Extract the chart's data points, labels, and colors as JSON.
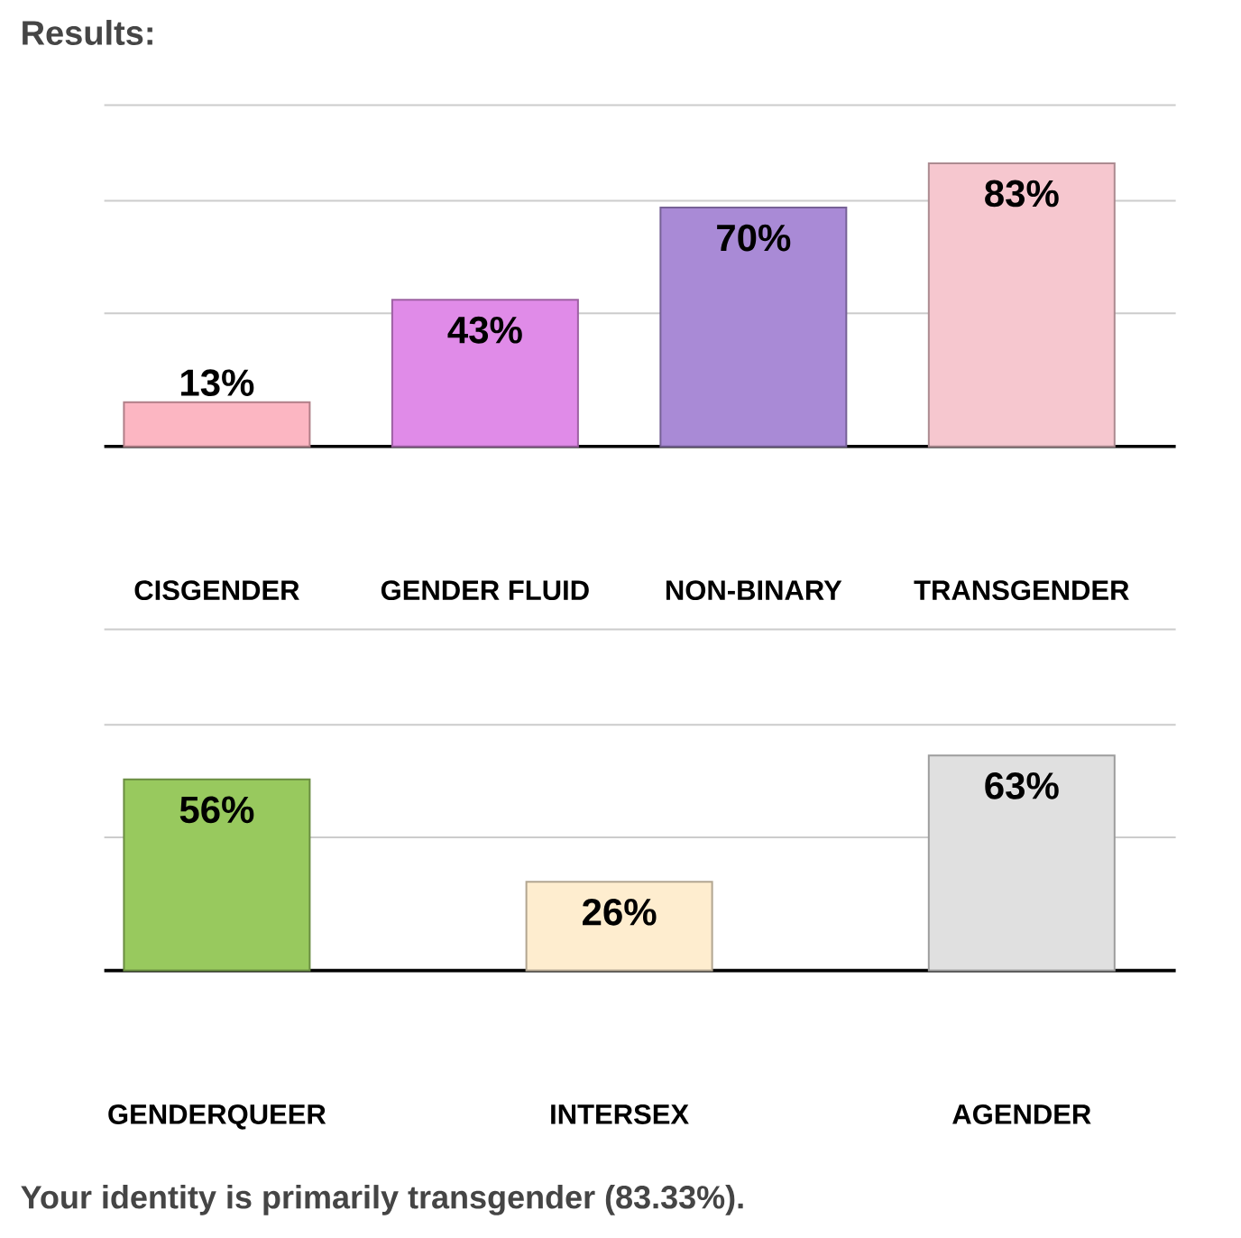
{
  "chart_data": [
    {
      "type": "bar",
      "title": "Results:",
      "categories": [
        "CISGENDER",
        "GENDER FLUID",
        "NON-BINARY",
        "TRANSGENDER"
      ],
      "values": [
        13,
        43,
        70,
        83
      ],
      "value_labels": [
        "13%",
        "43%",
        "70%",
        "83%"
      ],
      "colors": [
        "#fcb6c2",
        "#e08be8",
        "#a98ad6",
        "#f6c7cf"
      ],
      "ylim": [
        0,
        100
      ],
      "yticks": [
        {
          "value": 39,
          "label": null
        },
        {
          "value": 72,
          "label": null
        },
        {
          "value": 100,
          "label": null
        }
      ],
      "grid": "y",
      "tick_labels": "x"
    },
    {
      "type": "bar",
      "categories": [
        "GENDERQUEER",
        "INTERSEX",
        "AGENDER"
      ],
      "values": [
        56,
        26,
        63
      ],
      "value_labels": [
        "56%",
        "26%",
        "63%"
      ],
      "colors": [
        "#98c95e",
        "#feedcf",
        "#e0e0e0"
      ],
      "ylim": [
        0,
        100
      ],
      "yticks": [
        {
          "value": 39,
          "label": null
        },
        {
          "value": 72,
          "label": null
        },
        {
          "value": 100,
          "label": null
        }
      ],
      "grid": "y",
      "tick_labels": "x",
      "annotations": [
        "Your identity is primarily transgender (83.33%)."
      ]
    }
  ]
}
